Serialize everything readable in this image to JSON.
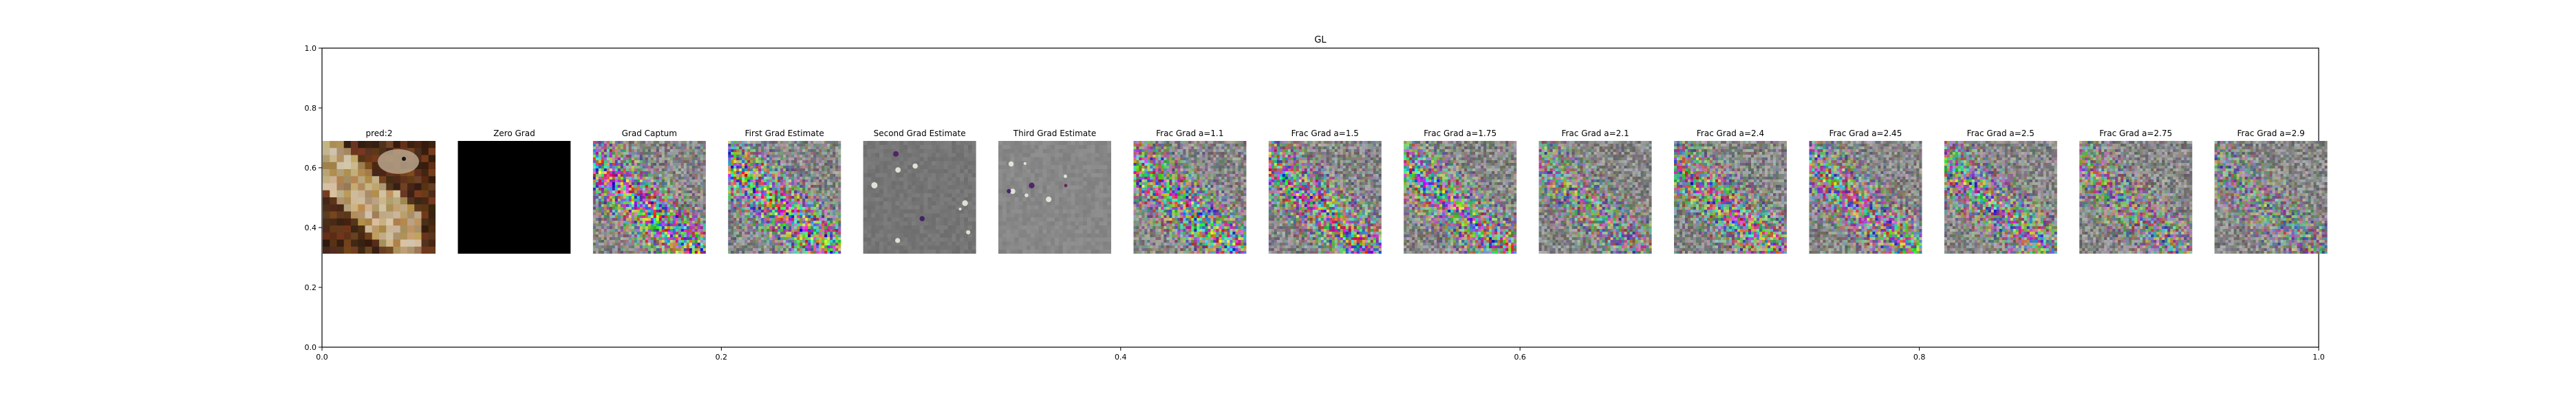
{
  "figure": {
    "title": "GL",
    "x_ticks": [
      "0.0",
      "0.2",
      "0.4",
      "0.6",
      "0.8",
      "1.0"
    ],
    "y_ticks": [
      "0.0",
      "0.2",
      "0.4",
      "0.6",
      "0.8",
      "1.0"
    ]
  },
  "panels": [
    {
      "title": "pred:2",
      "kind": "photo"
    },
    {
      "title": "Zero Grad",
      "kind": "black"
    },
    {
      "title": "Grad Captum",
      "kind": "noise",
      "saturation": 1.0,
      "brightness": 0.5
    },
    {
      "title": "First Grad Estimate",
      "kind": "noise",
      "saturation": 1.0,
      "brightness": 0.5
    },
    {
      "title": "Second Grad Estimate",
      "kind": "sparse"
    },
    {
      "title": "Third Grad Estimate",
      "kind": "sparse_light"
    },
    {
      "title": "Frac Grad a=1.1",
      "kind": "noise",
      "saturation": 0.95,
      "brightness": 0.5
    },
    {
      "title": "Frac Grad a=1.5",
      "kind": "noise",
      "saturation": 0.9,
      "brightness": 0.5
    },
    {
      "title": "Frac Grad a=1.75",
      "kind": "noise",
      "saturation": 0.85,
      "brightness": 0.5
    },
    {
      "title": "Frac Grad a=2.1",
      "kind": "noise",
      "saturation": 0.6,
      "brightness": 0.5
    },
    {
      "title": "Frac Grad a=2.4",
      "kind": "noise",
      "saturation": 0.8,
      "brightness": 0.5
    },
    {
      "title": "Frac Grad a=2.45",
      "kind": "noise",
      "saturation": 0.8,
      "brightness": 0.5
    },
    {
      "title": "Frac Grad a=2.5",
      "kind": "noise",
      "saturation": 0.75,
      "brightness": 0.5
    },
    {
      "title": "Frac Grad a=2.75",
      "kind": "noise",
      "saturation": 0.6,
      "brightness": 0.5
    },
    {
      "title": "Frac Grad a=2.9",
      "kind": "noise",
      "saturation": 0.5,
      "brightness": 0.5
    }
  ],
  "colors": {
    "axis": "#000000",
    "background": "#ffffff",
    "black_panel": "#000000",
    "gray_panel": "#808080"
  }
}
